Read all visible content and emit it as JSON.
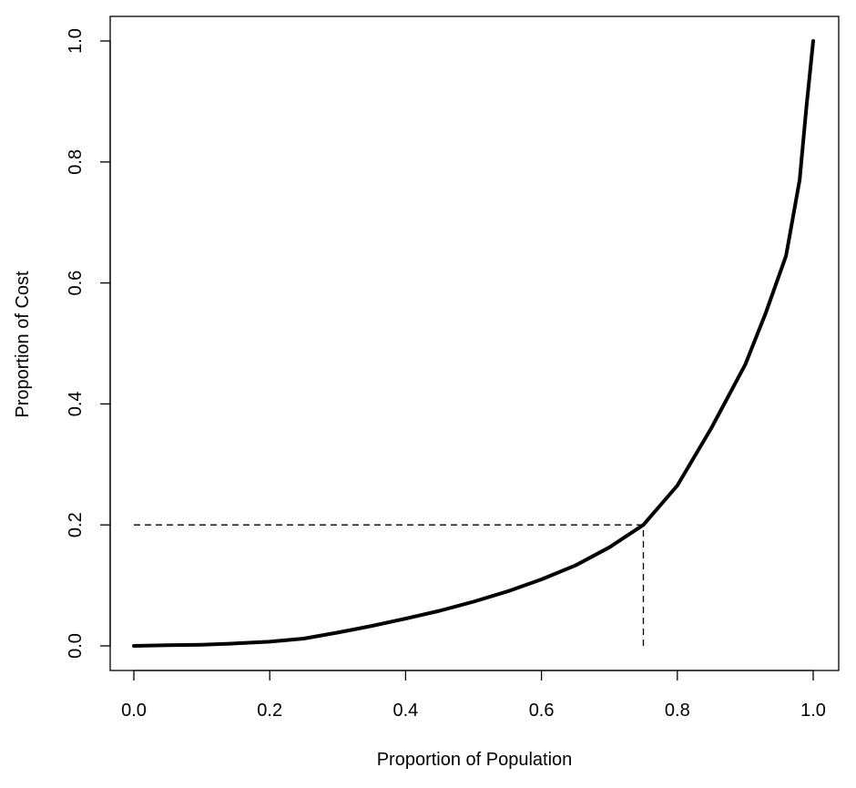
{
  "chart_data": {
    "type": "line",
    "title": "",
    "xlabel": "Proportion of Population",
    "ylabel": "Proportion of Cost",
    "xlim": [
      0,
      1
    ],
    "ylim": [
      0,
      1
    ],
    "xticks": [
      0.0,
      0.2,
      0.4,
      0.6,
      0.8,
      1.0
    ],
    "xtick_labels": [
      "0.0",
      "0.2",
      "0.4",
      "0.6",
      "0.8",
      "1.0"
    ],
    "yticks": [
      0.0,
      0.2,
      0.4,
      0.6,
      0.8,
      1.0
    ],
    "ytick_labels": [
      "0.0",
      "0.2",
      "0.4",
      "0.6",
      "0.8",
      "1.0"
    ],
    "grid": false,
    "legend": "none",
    "series": [
      {
        "color": "#000000",
        "x": [
          0.0,
          0.05,
          0.1,
          0.15,
          0.2,
          0.25,
          0.3,
          0.35,
          0.4,
          0.45,
          0.5,
          0.55,
          0.6,
          0.65,
          0.7,
          0.75,
          0.8,
          0.85,
          0.9,
          0.93,
          0.96,
          0.98,
          0.99,
          1.0
        ],
        "y": [
          0.0,
          0.001,
          0.002,
          0.004,
          0.007,
          0.012,
          0.022,
          0.033,
          0.045,
          0.058,
          0.073,
          0.09,
          0.11,
          0.133,
          0.163,
          0.2,
          0.265,
          0.36,
          0.465,
          0.55,
          0.645,
          0.77,
          0.89,
          1.0
        ]
      }
    ],
    "reference_lines": [
      {
        "style": "dashed",
        "x": [
          0.0,
          0.75
        ],
        "y": [
          0.2,
          0.2
        ]
      },
      {
        "style": "dashed",
        "x": [
          0.75,
          0.75
        ],
        "y": [
          0.0,
          0.2
        ]
      }
    ]
  }
}
